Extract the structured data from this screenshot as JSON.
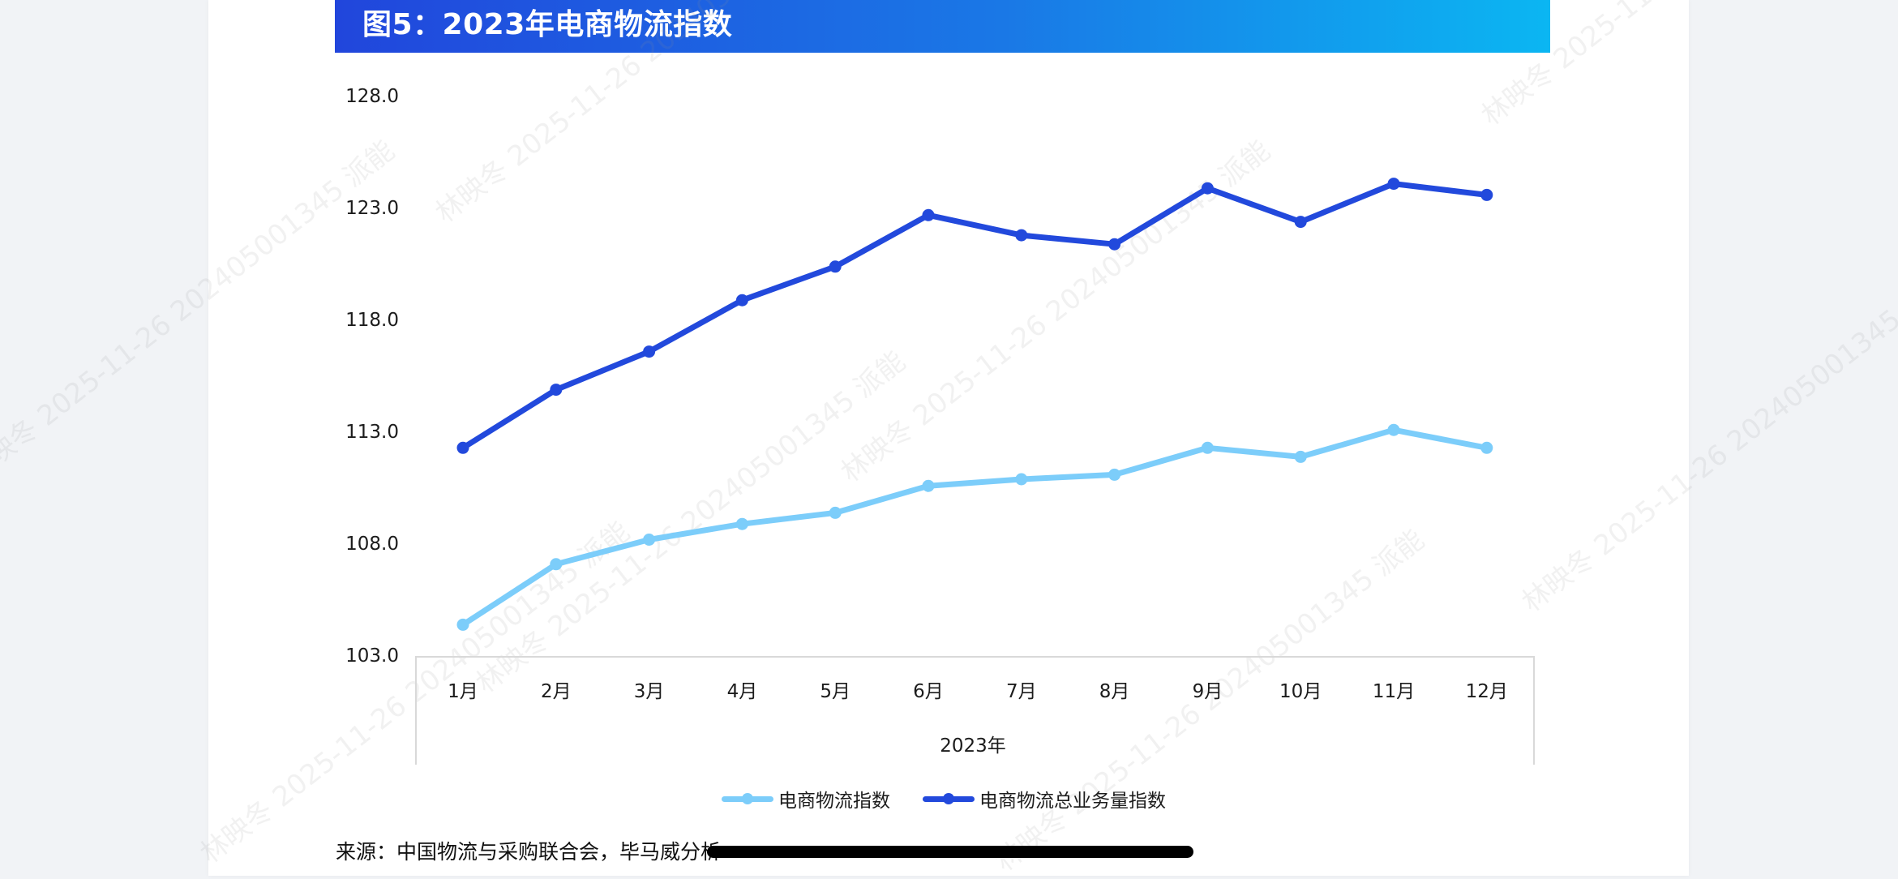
{
  "figure": {
    "title": "图5：2023年电商物流指数",
    "source": "来源：中国物流与采购联合会，毕马威分析"
  },
  "colors": {
    "header_start": "#2146dc",
    "header_end": "#0bb6f2",
    "series_light": "#7ccdfa",
    "series_dark": "#2249dc",
    "axis_box": "#d9d9d9"
  },
  "watermark": {
    "text": "林映冬 2025-11-26 202405001345 派能"
  },
  "chart_data": {
    "type": "line",
    "title": "图5：2023年电商物流指数",
    "xlabel": "2023年",
    "ylabel": "",
    "categories": [
      "1月",
      "2月",
      "3月",
      "4月",
      "5月",
      "6月",
      "7月",
      "8月",
      "9月",
      "10月",
      "11月",
      "12月"
    ],
    "series": [
      {
        "name": "电商物流指数",
        "color": "#7ccdfa",
        "values": [
          104.4,
          107.1,
          108.2,
          108.9,
          109.4,
          110.6,
          110.9,
          111.1,
          112.3,
          111.9,
          113.1,
          112.3
        ]
      },
      {
        "name": "电商物流总业务量指数",
        "color": "#2249dc",
        "values": [
          112.3,
          114.9,
          116.6,
          118.9,
          120.4,
          122.7,
          121.8,
          121.4,
          123.9,
          122.4,
          124.1,
          123.6
        ]
      }
    ],
    "ylim": [
      103.0,
      128.0
    ],
    "yticks": [
      "128.0",
      "123.0",
      "118.0",
      "113.0",
      "108.0",
      "103.0"
    ],
    "grid": false,
    "legend_position": "bottom",
    "markers": true
  },
  "legend": {
    "items": [
      {
        "label": "电商物流指数"
      },
      {
        "label": "电商物流总业务量指数"
      }
    ]
  }
}
